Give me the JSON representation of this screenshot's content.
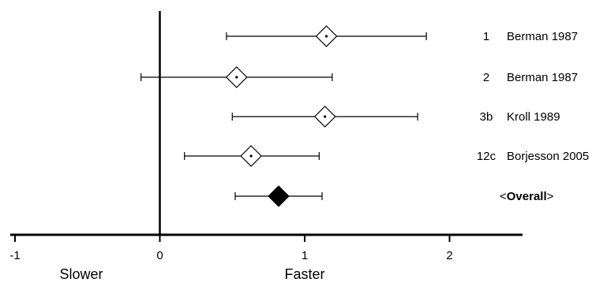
{
  "chart_data": {
    "type": "forest",
    "x_ticks": [
      -1,
      0,
      1,
      2
    ],
    "x_tick_labels": [
      "-1",
      "0",
      "1",
      "2"
    ],
    "xlim": [
      -1,
      2.5
    ],
    "axis_words": {
      "left": "Slower",
      "right": "Faster"
    },
    "studies": [
      {
        "id": "1",
        "name": "Berman 1987",
        "estimate": 1.15,
        "lower": 0.46,
        "upper": 1.84,
        "marker": "open"
      },
      {
        "id": "2",
        "name": "Berman 1987",
        "estimate": 0.53,
        "lower": -0.13,
        "upper": 1.19,
        "marker": "open"
      },
      {
        "id": "3b",
        "name": "Kroll 1989",
        "estimate": 1.14,
        "lower": 0.5,
        "upper": 1.78,
        "marker": "open"
      },
      {
        "id": "12c",
        "name": "Borjesson 2005",
        "estimate": 0.63,
        "lower": 0.17,
        "upper": 1.1,
        "marker": "open"
      }
    ],
    "overall": {
      "label_prefix": "<",
      "label_bold": "Overall",
      "label_suffix": ">",
      "estimate": 0.82,
      "lower": 0.52,
      "upper": 1.12,
      "marker": "filled"
    }
  }
}
